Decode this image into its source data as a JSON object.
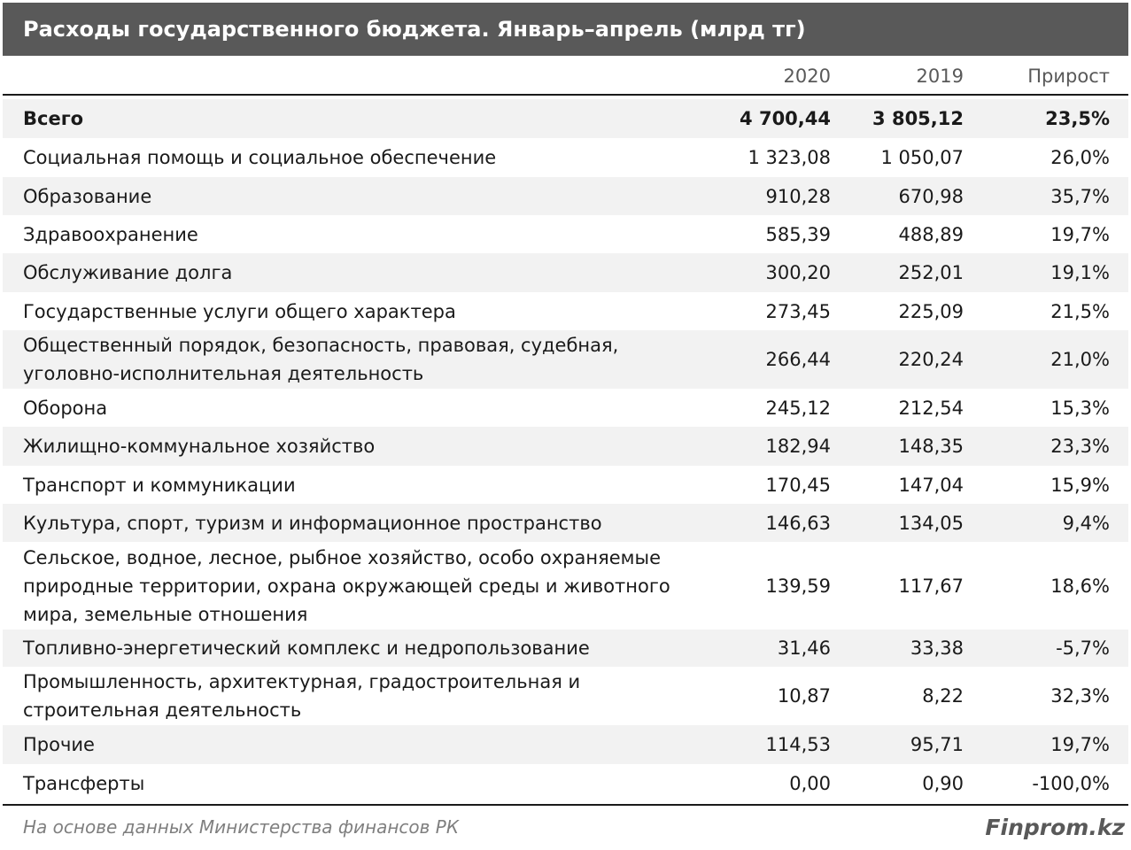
{
  "chart_data": {
    "type": "table",
    "title": "Расходы государственного бюджета. Январь–апрель (млрд тг)",
    "columns": [
      "",
      "2020",
      "2019",
      "Прирост"
    ],
    "rows": [
      {
        "label": "Всего",
        "v2020": "4 700,44",
        "v2019": "3 805,12",
        "growth": "23,5%"
      },
      {
        "label": "Социальная помощь и социальное обеспечение",
        "v2020": "1 323,08",
        "v2019": "1 050,07",
        "growth": "26,0%"
      },
      {
        "label": "Образование",
        "v2020": "910,28",
        "v2019": "670,98",
        "growth": "35,7%"
      },
      {
        "label": "Здравоохранение",
        "v2020": "585,39",
        "v2019": "488,89",
        "growth": "19,7%"
      },
      {
        "label": "Обслуживание долга",
        "v2020": "300,20",
        "v2019": "252,01",
        "growth": "19,1%"
      },
      {
        "label": "Государственные услуги общего характера",
        "v2020": "273,45",
        "v2019": "225,09",
        "growth": "21,5%"
      },
      {
        "label": "Общественный порядок, безопасность, правовая, судебная,\nуголовно-исполнительная деятельность",
        "v2020": "266,44",
        "v2019": "220,24",
        "growth": "21,0%"
      },
      {
        "label": "Оборона",
        "v2020": "245,12",
        "v2019": "212,54",
        "growth": "15,3%"
      },
      {
        "label": "Жилищно-коммунальное хозяйство",
        "v2020": "182,94",
        "v2019": "148,35",
        "growth": "23,3%"
      },
      {
        "label": "Транспорт и коммуникации",
        "v2020": "170,45",
        "v2019": "147,04",
        "growth": "15,9%"
      },
      {
        "label": "Культура, спорт, туризм и информационное пространство",
        "v2020": "146,63",
        "v2019": "134,05",
        "growth": "9,4%"
      },
      {
        "label": "Сельское, водное, лесное, рыбное хозяйство, особо охраняемые\nприродные территории, охрана окружающей среды и животного\nмира, земельные отношения",
        "v2020": "139,59",
        "v2019": "117,67",
        "growth": "18,6%"
      },
      {
        "label": "Топливно-энергетический комплекс и недропользование",
        "v2020": "31,46",
        "v2019": "33,38",
        "growth": "-5,7%"
      },
      {
        "label": "Промышленность, архитектурная, градостроительная и\nстроительная деятельность",
        "v2020": "10,87",
        "v2019": "8,22",
        "growth": "32,3%"
      },
      {
        "label": "Прочие",
        "v2020": "114,53",
        "v2019": "95,71",
        "growth": "19,7%"
      },
      {
        "label": "Трансферты",
        "v2020": "0,00",
        "v2019": "0,90",
        "growth": "-100,0%"
      }
    ]
  },
  "footer": {
    "source": "На основе данных Министерства финансов РК",
    "brand": "Finprom.kz"
  }
}
